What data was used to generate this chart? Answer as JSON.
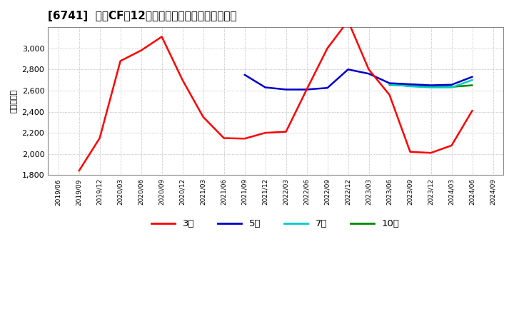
{
  "title": "[6741]  営業CFだ12か月移動合計の標準偏差の推移",
  "ylabel": "（百万円）",
  "ylim": [
    1800,
    3200
  ],
  "yticks": [
    1800,
    2000,
    2200,
    2400,
    2600,
    2800,
    3000
  ],
  "background_color": "#ffffff",
  "grid_color": "#999999",
  "x_labels": [
    "2019/06",
    "2019/09",
    "2019/12",
    "2020/03",
    "2020/06",
    "2020/09",
    "2020/12",
    "2021/03",
    "2021/06",
    "2021/09",
    "2021/12",
    "2022/03",
    "2022/06",
    "2022/09",
    "2022/12",
    "2023/03",
    "2023/06",
    "2023/09",
    "2023/12",
    "2024/03",
    "2024/06",
    "2024/09"
  ],
  "series": {
    "3年": {
      "color": "#ff0000",
      "linewidth": 1.8,
      "data_x": [
        "2019/09",
        "2019/12",
        "2020/03",
        "2020/06",
        "2020/09",
        "2020/12",
        "2021/03",
        "2021/06",
        "2021/09",
        "2021/12",
        "2022/03",
        "2022/06",
        "2022/09",
        "2022/12",
        "2023/03",
        "2023/06",
        "2023/09",
        "2023/12",
        "2024/03",
        "2024/06"
      ],
      "data_y": [
        1840,
        2150,
        2880,
        2980,
        3110,
        2700,
        2350,
        2150,
        2145,
        2200,
        2210,
        2610,
        3000,
        3260,
        2800,
        2560,
        2020,
        2010,
        2080,
        2410
      ]
    },
    "5年": {
      "color": "#0000cc",
      "linewidth": 1.8,
      "data_x": [
        "2021/09",
        "2021/12",
        "2022/03",
        "2022/06",
        "2022/09",
        "2022/12",
        "2023/03",
        "2023/06",
        "2023/09",
        "2023/12",
        "2024/03",
        "2024/06"
      ],
      "data_y": [
        2750,
        2630,
        2610,
        2610,
        2625,
        2800,
        2760,
        2670,
        2660,
        2650,
        2655,
        2730
      ]
    },
    "7年": {
      "color": "#00cccc",
      "linewidth": 1.8,
      "data_x": [
        "2023/06",
        "2023/09",
        "2023/12",
        "2024/03",
        "2024/06"
      ],
      "data_y": [
        2660,
        2640,
        2630,
        2630,
        2700
      ]
    },
    "10年": {
      "color": "#008800",
      "linewidth": 1.8,
      "data_x": [
        "2023/06",
        "2023/09",
        "2023/12",
        "2024/03",
        "2024/06"
      ],
      "data_y": [
        2655,
        2645,
        2635,
        2635,
        2650
      ]
    }
  },
  "legend_labels": [
    "3年",
    "5年",
    "7年",
    "10年"
  ],
  "legend_colors": [
    "#ff0000",
    "#0000cc",
    "#00cccc",
    "#008800"
  ],
  "title_fontsize": 11,
  "tick_fontsize": 8,
  "ylabel_fontsize": 8
}
